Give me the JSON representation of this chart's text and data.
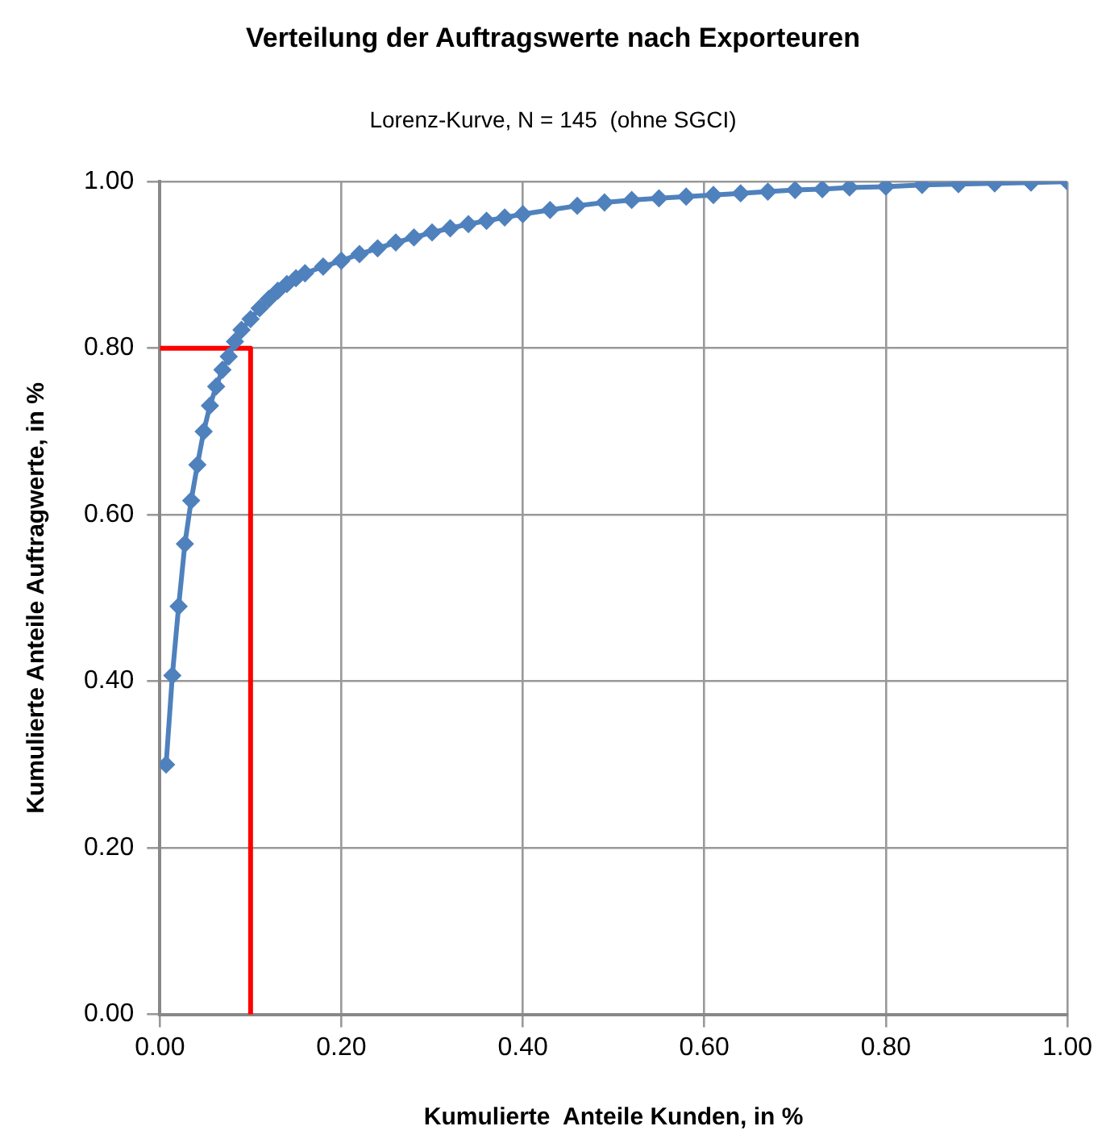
{
  "chart_data": {
    "type": "line",
    "title": "Verteilung der Auftragswerte nach Exporteuren",
    "subtitle": "Lorenz-Kurve, N = 145  (ohne SGCI)",
    "xlabel": "Kumulierte  Anteile Kunden, in %",
    "ylabel": "Kumulierte Anteile Auftragwerte, in %",
    "xlim": [
      0,
      1
    ],
    "ylim": [
      0,
      1
    ],
    "xticks": [
      {
        "value": 0,
        "label": "0.00"
      },
      {
        "value": 0.2,
        "label": "0.20"
      },
      {
        "value": 0.4,
        "label": "0.40"
      },
      {
        "value": 0.6,
        "label": "0.60"
      },
      {
        "value": 0.8,
        "label": "0.80"
      },
      {
        "value": 1,
        "label": "1.00"
      }
    ],
    "yticks": [
      {
        "value": 0,
        "label": "0.00"
      },
      {
        "value": 0.2,
        "label": "0.20"
      },
      {
        "value": 0.4,
        "label": "0.40"
      },
      {
        "value": 0.6,
        "label": "0.60"
      },
      {
        "value": 0.8,
        "label": "0.80"
      },
      {
        "value": 1,
        "label": "1.00"
      }
    ],
    "grid": true,
    "legend": false,
    "series": [
      {
        "color": "#4f81bd",
        "marker": "diamond",
        "x": [
          0.0069,
          0.0138,
          0.0207,
          0.0276,
          0.0345,
          0.0414,
          0.0483,
          0.0552,
          0.0621,
          0.069,
          0.0759,
          0.0828,
          0.09,
          0.1,
          0.11,
          0.12,
          0.13,
          0.14,
          0.15,
          0.16,
          0.18,
          0.2,
          0.22,
          0.24,
          0.26,
          0.28,
          0.3,
          0.32,
          0.34,
          0.36,
          0.38,
          0.4,
          0.43,
          0.46,
          0.49,
          0.52,
          0.55,
          0.58,
          0.61,
          0.64,
          0.67,
          0.7,
          0.73,
          0.76,
          0.8,
          0.84,
          0.88,
          0.92,
          0.96,
          1
        ],
        "values": [
          0.3,
          0.407,
          0.49,
          0.565,
          0.617,
          0.66,
          0.7,
          0.731,
          0.754,
          0.774,
          0.79,
          0.808,
          0.822,
          0.835,
          0.848,
          0.859,
          0.869,
          0.877,
          0.884,
          0.89,
          0.898,
          0.905,
          0.913,
          0.92,
          0.927,
          0.933,
          0.939,
          0.944,
          0.949,
          0.953,
          0.957,
          0.961,
          0.966,
          0.971,
          0.975,
          0.978,
          0.98,
          0.982,
          0.984,
          0.986,
          0.988,
          0.99,
          0.991,
          0.993,
          0.994,
          0.996,
          0.997,
          0.998,
          0.999,
          1
        ]
      },
      {
        "type": "line",
        "color": "#ff0000",
        "marker": "none",
        "x": [
          0,
          0.1,
          0.1
        ],
        "values": [
          0.8,
          0.8,
          0
        ]
      }
    ]
  }
}
